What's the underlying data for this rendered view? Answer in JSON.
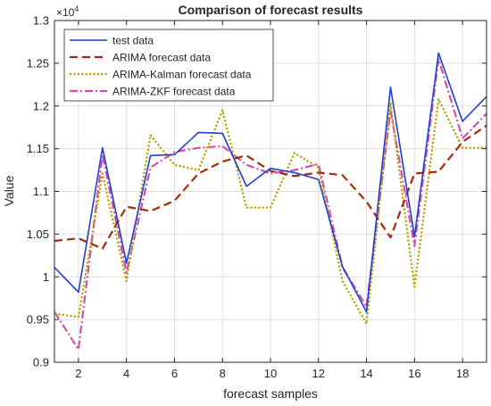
{
  "chart_data": {
    "type": "line",
    "title": "Comparison of forecast results",
    "xlabel": "forecast samples",
    "ylabel": "Value",
    "exponent_label": "×10",
    "exponent_power": "4",
    "xlim": [
      1,
      19
    ],
    "ylim": [
      0.9,
      1.3
    ],
    "x_ticks": [
      2,
      4,
      6,
      8,
      10,
      12,
      14,
      16,
      18
    ],
    "y_ticks": [
      0.9,
      0.95,
      1,
      1.05,
      1.1,
      1.15,
      1.2,
      1.25,
      1.3
    ],
    "y_tick_labels": [
      "0.9",
      "0.95",
      "1",
      "1.05",
      "1.1",
      "1.15",
      "1.2",
      "1.25",
      "1.3"
    ],
    "grid": true,
    "legend_position": "top-left",
    "x": [
      1,
      2,
      3,
      4,
      5,
      6,
      7,
      8,
      9,
      10,
      11,
      12,
      13,
      14,
      15,
      16,
      17,
      18,
      19
    ],
    "series": [
      {
        "name": "test data",
        "color": "#1f3fd0",
        "dash": "solid",
        "values": [
          1.011,
          0.982,
          1.151,
          1.016,
          1.142,
          1.143,
          1.169,
          1.168,
          1.106,
          1.127,
          1.122,
          1.114,
          1.012,
          0.959,
          1.222,
          1.047,
          1.262,
          1.182,
          1.211
        ]
      },
      {
        "name": "ARIMA forecast data",
        "color": "#a32a0a",
        "dash": "dashed",
        "values": [
          1.042,
          1.045,
          1.033,
          1.082,
          1.077,
          1.089,
          1.121,
          1.135,
          1.142,
          1.124,
          1.118,
          1.122,
          1.119,
          1.088,
          1.046,
          1.121,
          1.123,
          1.158,
          1.177
        ]
      },
      {
        "name": "ARIMA-Kalman forecast data",
        "color": "#b8a000",
        "dash": "dotted",
        "values": [
          0.957,
          0.953,
          1.121,
          0.995,
          1.166,
          1.131,
          1.125,
          1.195,
          1.081,
          1.081,
          1.145,
          1.128,
          0.995,
          0.945,
          1.203,
          0.988,
          1.208,
          1.151,
          1.151
        ]
      },
      {
        "name": "ARIMA-ZKF forecast data",
        "color": "#d24fb0",
        "dash": "dashdot",
        "values": [
          0.959,
          0.915,
          1.143,
          1.005,
          1.128,
          1.146,
          1.151,
          1.153,
          1.131,
          1.121,
          1.125,
          1.132,
          1.011,
          0.965,
          1.195,
          1.036,
          1.255,
          1.162,
          1.191
        ]
      }
    ]
  }
}
